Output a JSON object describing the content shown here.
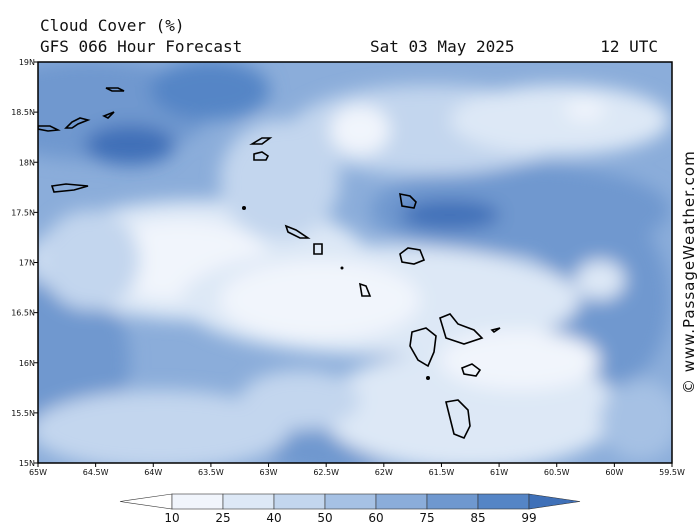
{
  "header": {
    "title": "Cloud Cover (%)",
    "subtitle": "GFS 066 Hour Forecast",
    "date": "Sat 03 May 2025",
    "time": "12 UTC"
  },
  "map": {
    "lon_labels": [
      "65W",
      "64.5W",
      "64W",
      "63.5W",
      "63W",
      "62.5W",
      "62W",
      "61.5W",
      "61W",
      "60.5W",
      "60W",
      "59.5W"
    ],
    "lat_labels": [
      "19N",
      "18.5N",
      "18N",
      "17.5N",
      "17N",
      "16.5N",
      "16N",
      "15.5N",
      "15N"
    ]
  },
  "colorbar": {
    "levels": [
      10,
      25,
      40,
      50,
      60,
      75,
      85,
      99
    ],
    "colors": [
      "#ffffff",
      "#f1f5fc",
      "#dde8f6",
      "#c3d6ee",
      "#a6c1e4",
      "#8badda",
      "#6f98cf",
      "#5585c6",
      "#3f70b8"
    ]
  },
  "watermark": "© www.PassageWeather.com"
}
